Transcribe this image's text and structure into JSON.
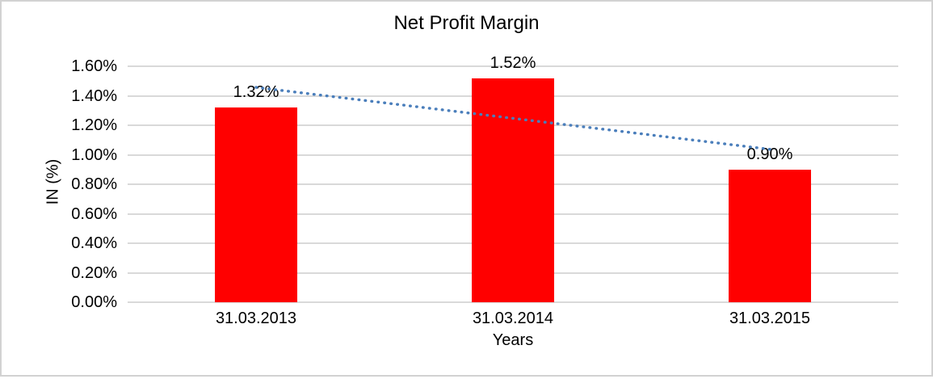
{
  "chart_data": {
    "type": "bar",
    "title": "Net Profit Margin",
    "categories": [
      "31.03.2013",
      "31.03.2014",
      "31.03.2015"
    ],
    "values": [
      1.32,
      1.52,
      0.9
    ],
    "data_labels": [
      "1.32%",
      "1.52%",
      "0.90%"
    ],
    "xlabel": "Years",
    "ylabel": "IN (%)",
    "ylim": [
      0,
      1.6
    ],
    "y_tick_step": 0.2,
    "y_tick_labels": [
      "0.00%",
      "0.20%",
      "0.40%",
      "0.60%",
      "0.80%",
      "1.00%",
      "1.20%",
      "1.40%",
      "1.60%"
    ],
    "grid": true,
    "legend_position": "none",
    "trendline": {
      "type": "linear",
      "style": "dotted",
      "endpoint_values": [
        1.457,
        1.037
      ]
    },
    "colors": {
      "bar": "#ff0000",
      "trendline": "#4a7ebb",
      "gridline": "#d9d9d9",
      "axis_line": "#d9d9d9",
      "text": "#000000",
      "border": "#d2d2d2",
      "background": "#ffffff"
    }
  }
}
